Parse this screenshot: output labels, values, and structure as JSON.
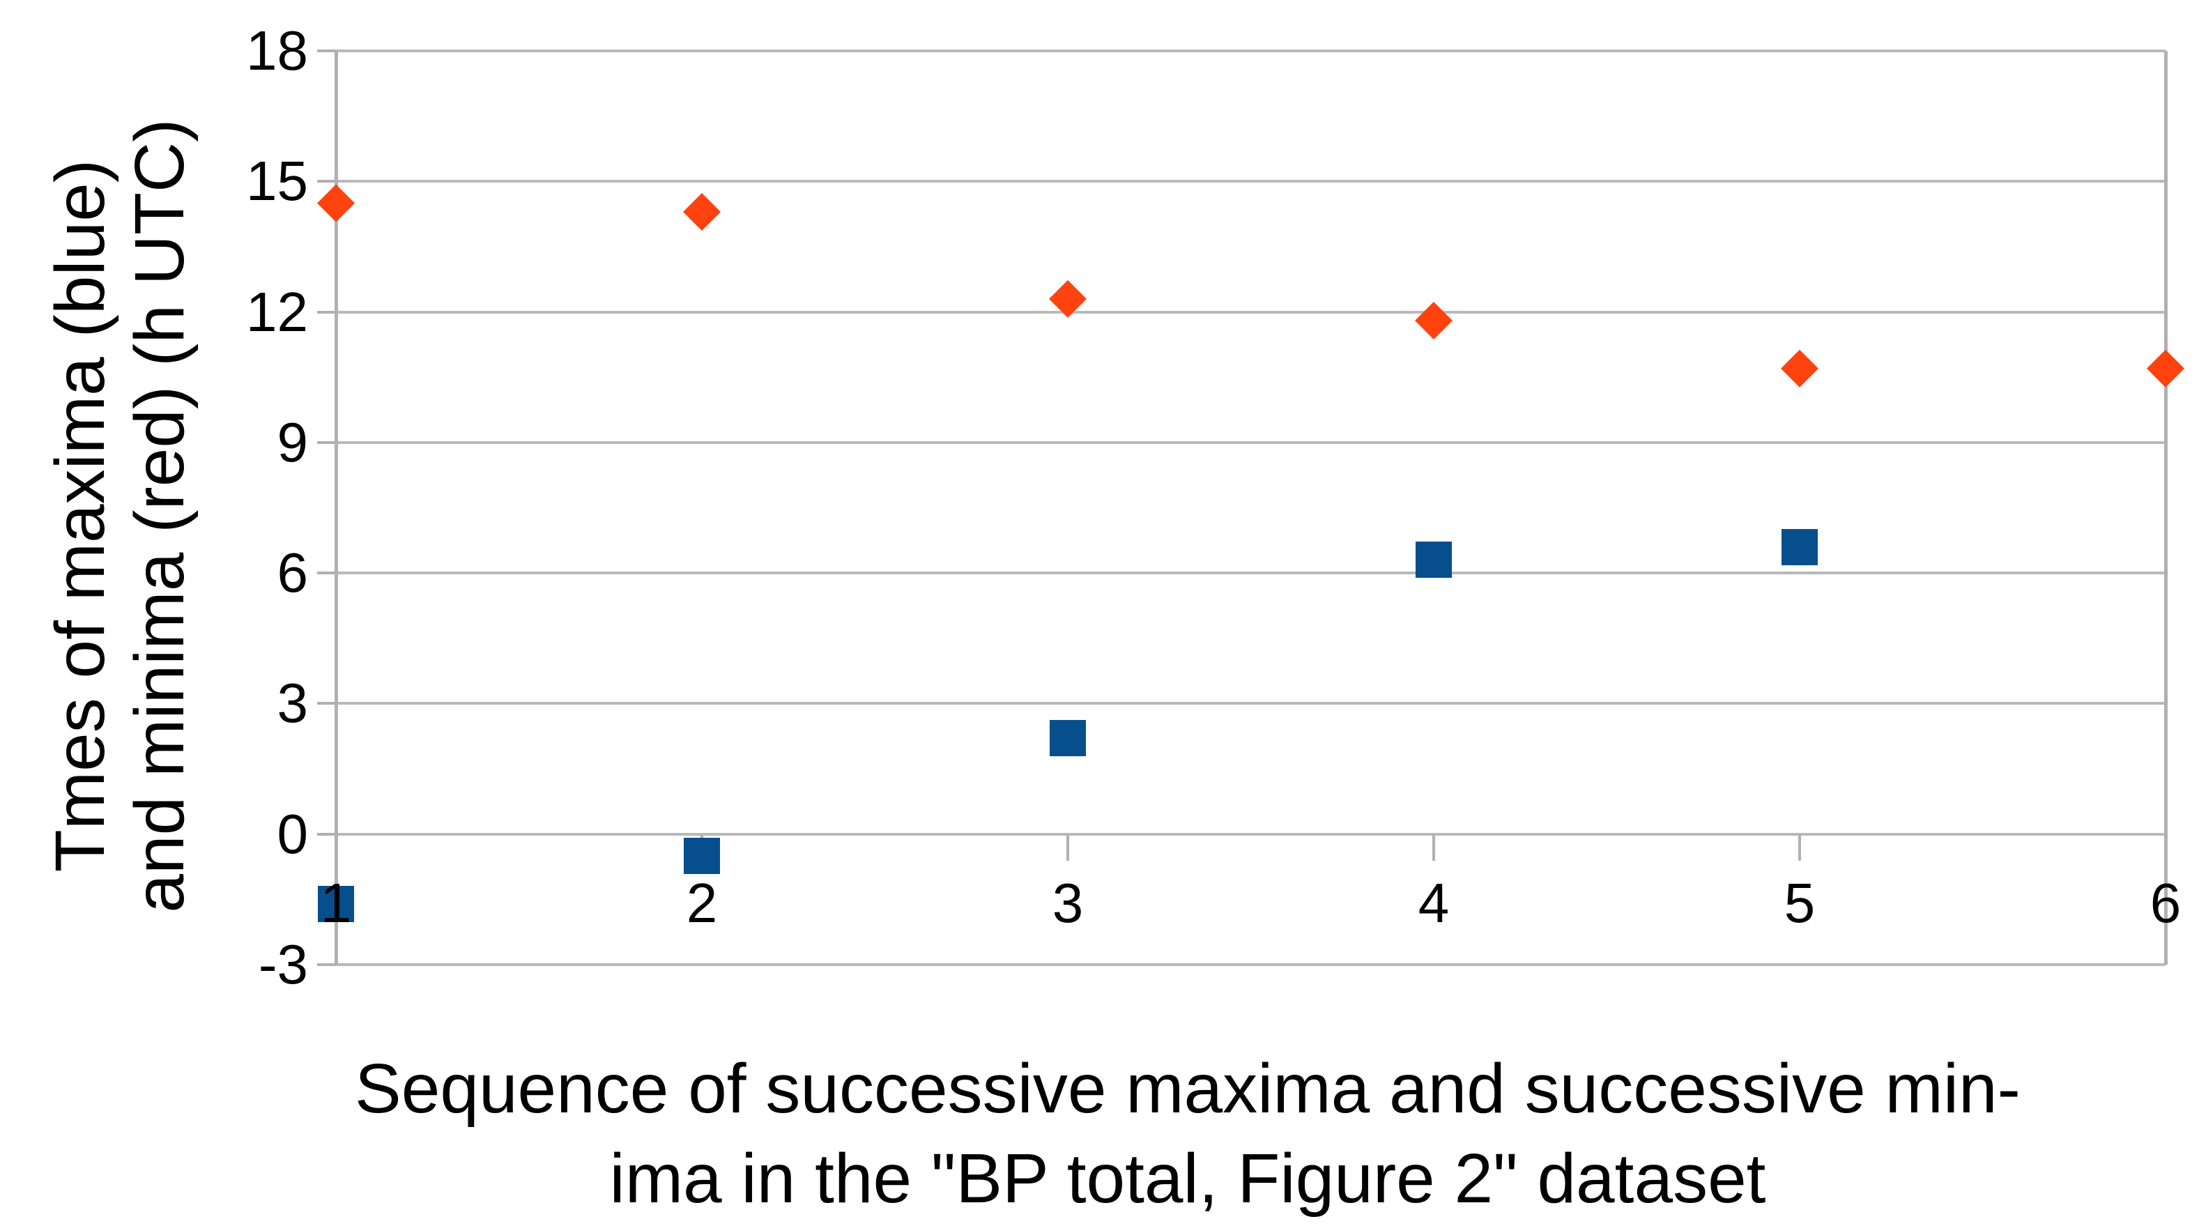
{
  "chart_data": {
    "type": "scatter",
    "title": "",
    "x_title_lines": [
      "Sequence of successive maxima and successive min-",
      "ima in the \"BP total, Figure 2\" dataset"
    ],
    "y_title_lines": [
      "Tmes of maxima (blue)",
      "and minima (red) (h UTC)"
    ],
    "xlabel": "Sequence of successive maxima and successive minima in the \"BP total, Figure 2\" dataset",
    "ylabel": "Tmes of maxima (blue) and minima (red) (h UTC)",
    "categories": [
      1,
      2,
      3,
      4,
      5,
      6
    ],
    "x_tick_labels": [
      "1",
      "2",
      "3",
      "4",
      "5",
      "6"
    ],
    "y_tick_labels": [
      "18",
      "15",
      "12",
      "9",
      "6",
      "3",
      "0",
      "-3"
    ],
    "y_ticks": [
      18,
      15,
      12,
      9,
      6,
      3,
      0,
      -3
    ],
    "ylim": [
      -3,
      18
    ],
    "xlim": [
      1,
      6
    ],
    "grid": "horizontal-only",
    "legend": "none",
    "series": [
      {
        "name": "maxima (blue)",
        "marker": "square",
        "color": "#074e8d",
        "x": [
          1,
          2,
          3,
          4,
          5
        ],
        "y": [
          -1.6,
          -0.5,
          2.2,
          6.3,
          6.6
        ]
      },
      {
        "name": "minima (red)",
        "marker": "diamond",
        "color": "#ff420e",
        "x": [
          1,
          2,
          3,
          4,
          5,
          6
        ],
        "y": [
          14.5,
          14.3,
          12.3,
          11.8,
          10.7,
          10.7
        ]
      }
    ]
  },
  "colors": {
    "background": "#ffffff",
    "gridline": "#b9b9b9",
    "axis": "#b0b0b0",
    "text": "#000000",
    "series_maxima": "#074e8d",
    "series_minima": "#ff420e"
  }
}
